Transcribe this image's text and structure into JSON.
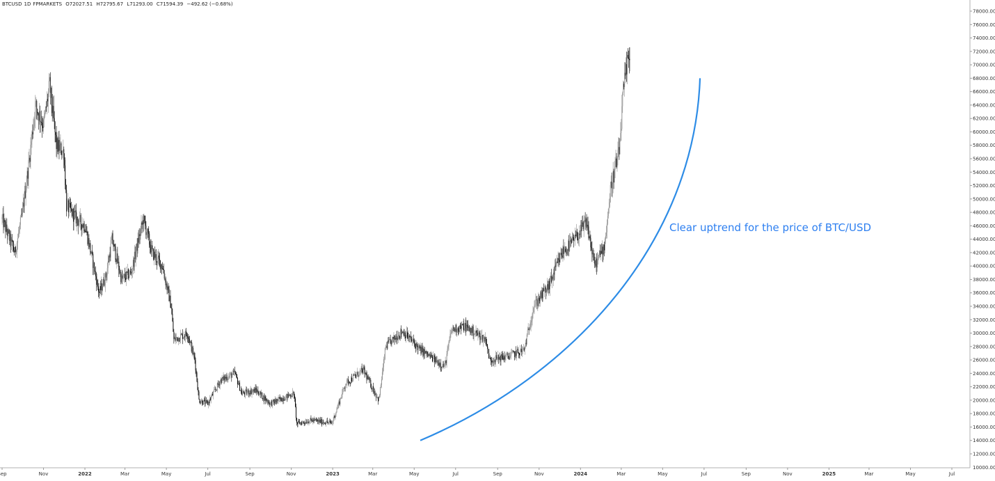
{
  "header": {
    "symbol": "BTCUSD",
    "interval": "1D",
    "exchange": "FPMARKETS",
    "open": "O72027.51",
    "high": "H72795.67",
    "low": "L71293.00",
    "close": "C71594.39",
    "change": "−492.62 (−0.68%)"
  },
  "annotation": {
    "text": "Clear uptrend for the price of BTC/USD"
  },
  "colors": {
    "candle_up": "#8c8c8c",
    "candle_down": "#000000",
    "curve": "#2d8ce6",
    "axis": "#555555",
    "annotation": "#2d7ff0"
  },
  "chart_data": {
    "type": "candlestick",
    "title": "",
    "xlabel": "",
    "ylabel": "",
    "ylim": [
      10000,
      79000
    ],
    "y_scale": "linear",
    "grid": false,
    "y_ticks": [
      "12000.00",
      "14000.00",
      "16000.00",
      "18000.00",
      "20000.00",
      "22000.00",
      "24000.00",
      "26000.00",
      "28000.00",
      "30000.00",
      "32000.00",
      "34000.00",
      "36000.00",
      "38000.00",
      "40000.00",
      "42000.00",
      "44000.00",
      "46000.00",
      "48000.00",
      "50000.00",
      "52000.00",
      "54000.00",
      "56000.00",
      "58000.00",
      "60000.00",
      "62000.00",
      "64000.00",
      "66000.00",
      "68000.00",
      "70000.00",
      "72000.00",
      "74000.00",
      "76000.00",
      "78000.00"
    ],
    "x_ticks": [
      "Sep",
      "Nov",
      "2022",
      "Mar",
      "May",
      "Jul",
      "Sep",
      "Nov",
      "2023",
      "Mar",
      "May",
      "Jul",
      "Sep",
      "Nov",
      "2024",
      "Mar",
      "May",
      "Jul",
      "Sep",
      "Nov",
      "2025",
      "Mar",
      "May",
      "Jul"
    ],
    "x_tick_dates": [
      "2021-09-01",
      "2021-11-01",
      "2022-01-01",
      "2022-03-01",
      "2022-05-01",
      "2022-07-01",
      "2022-09-01",
      "2022-11-01",
      "2023-01-01",
      "2023-03-01",
      "2023-05-01",
      "2023-07-01",
      "2023-09-01",
      "2023-11-01",
      "2024-01-01",
      "2024-03-01",
      "2024-05-01",
      "2024-07-01",
      "2024-09-01",
      "2024-11-01",
      "2025-01-01",
      "2025-03-01",
      "2025-05-01",
      "2025-07-01"
    ],
    "series": [
      {
        "values_approx": [
          [
            "2021-09-01",
            47000
          ],
          [
            "2021-09-20",
            42000
          ],
          [
            "2021-10-01",
            48000
          ],
          [
            "2021-10-10",
            55000
          ],
          [
            "2021-10-20",
            64000
          ],
          [
            "2021-11-01",
            61000
          ],
          [
            "2021-11-10",
            67000
          ],
          [
            "2021-11-20",
            58000
          ],
          [
            "2021-12-01",
            57000
          ],
          [
            "2021-12-05",
            49000
          ],
          [
            "2021-12-20",
            47000
          ],
          [
            "2022-01-01",
            46000
          ],
          [
            "2022-01-10",
            42000
          ],
          [
            "2022-01-22",
            36000
          ],
          [
            "2022-02-01",
            38500
          ],
          [
            "2022-02-10",
            44000
          ],
          [
            "2022-02-24",
            38000
          ],
          [
            "2022-03-10",
            39000
          ],
          [
            "2022-03-28",
            47000
          ],
          [
            "2022-04-10",
            42000
          ],
          [
            "2022-04-25",
            40000
          ],
          [
            "2022-05-08",
            34000
          ],
          [
            "2022-05-12",
            29000
          ],
          [
            "2022-06-01",
            30000
          ],
          [
            "2022-06-12",
            26000
          ],
          [
            "2022-06-18",
            20000
          ],
          [
            "2022-07-01",
            19500
          ],
          [
            "2022-07-20",
            23000
          ],
          [
            "2022-08-10",
            24000
          ],
          [
            "2022-08-20",
            21000
          ],
          [
            "2022-09-10",
            21500
          ],
          [
            "2022-10-01",
            19500
          ],
          [
            "2022-11-05",
            21000
          ],
          [
            "2022-11-09",
            16500
          ],
          [
            "2022-12-01",
            17000
          ],
          [
            "2022-12-31",
            16600
          ],
          [
            "2023-01-20",
            22500
          ],
          [
            "2023-02-15",
            24500
          ],
          [
            "2023-03-10",
            20000
          ],
          [
            "2023-03-20",
            28000
          ],
          [
            "2023-04-14",
            30300
          ],
          [
            "2023-05-10",
            27500
          ],
          [
            "2023-06-15",
            25000
          ],
          [
            "2023-06-25",
            30500
          ],
          [
            "2023-07-15",
            31000
          ],
          [
            "2023-08-15",
            29000
          ],
          [
            "2023-08-20",
            26000
          ],
          [
            "2023-09-15",
            26500
          ],
          [
            "2023-10-10",
            27500
          ],
          [
            "2023-10-24",
            34000
          ],
          [
            "2023-11-15",
            37000
          ],
          [
            "2023-12-05",
            42000
          ],
          [
            "2023-12-20",
            43500
          ],
          [
            "2024-01-10",
            46500
          ],
          [
            "2024-01-22",
            40000
          ],
          [
            "2024-02-05",
            43000
          ],
          [
            "2024-02-15",
            52000
          ],
          [
            "2024-02-27",
            57000
          ],
          [
            "2024-03-04",
            66000
          ],
          [
            "2024-03-10",
            70000
          ],
          [
            "2024-03-14",
            72000
          ]
        ]
      }
    ],
    "annotations": [
      {
        "type": "curve",
        "from": [
          "2023-05-10",
          14000
        ],
        "to": [
          "2024-06-25",
          68000
        ]
      },
      {
        "type": "text",
        "text_ref": "annotation.text"
      }
    ]
  }
}
